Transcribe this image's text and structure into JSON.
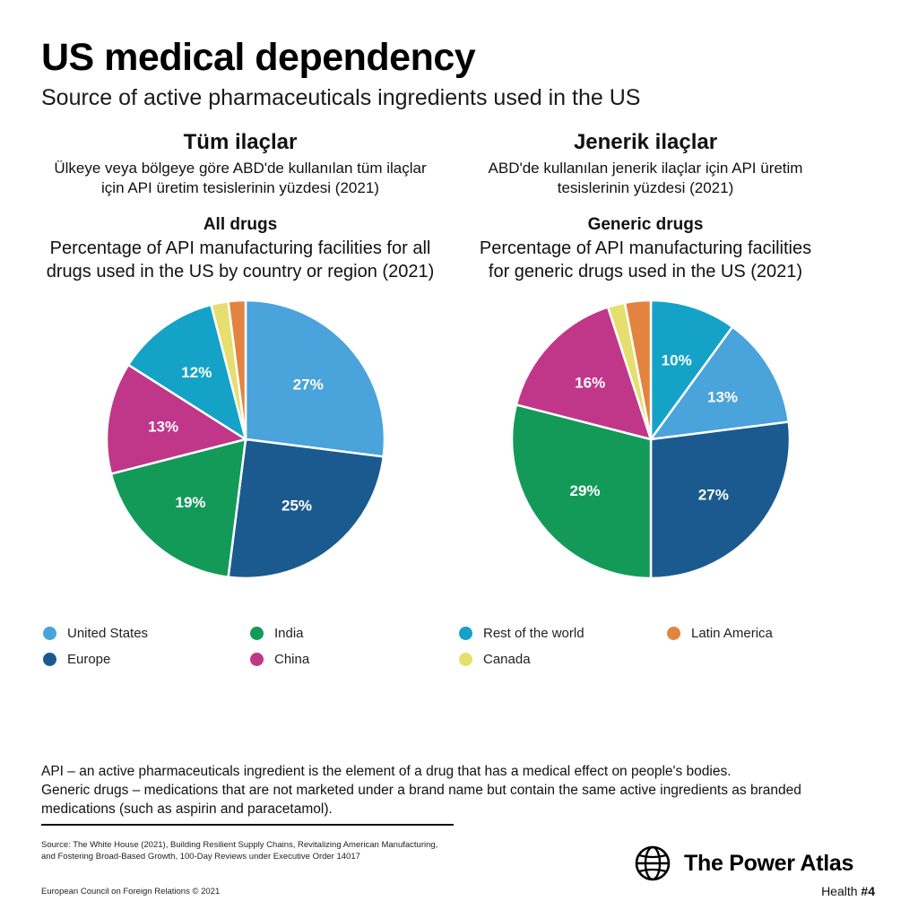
{
  "header": {
    "title": "US medical dependency",
    "subtitle": "Source of active pharmaceuticals ingredients used in the US"
  },
  "left_panel": {
    "tr_title": "Tüm ilaçlar",
    "tr_desc_line1": "Ülkeye veya bölgeye göre ABD'de kullanılan tüm ilaçlar",
    "tr_desc_line2": "için API üretim tesislerinin yüzdesi (2021)",
    "en_title": "All drugs",
    "en_desc_line1": "Percentage of API manufacturing facilities for all",
    "en_desc_line2": "drugs used in the US by country or region (2021)"
  },
  "right_panel": {
    "tr_title": "Jenerik ilaçlar",
    "tr_desc_line1": "ABD'de kullanılan jenerik ilaçlar için API üretim",
    "tr_desc_line2": "tesislerinin yüzdesi (2021)",
    "en_title": "Generic drugs",
    "en_desc_line1": "Percentage of API manufacturing facilities",
    "en_desc_line2": "for generic drugs used in the US (2021)"
  },
  "colors": {
    "United States": "#4aa3da",
    "Europe": "#1b5a8e",
    "India": "#139a58",
    "China": "#c0378a",
    "Rest of the world": "#14a3c7",
    "Canada": "#e6df6e",
    "Latin America": "#e2843f"
  },
  "chart_data": [
    {
      "type": "pie",
      "title": "All drugs",
      "categories": [
        "United States",
        "Europe",
        "India",
        "China",
        "Rest of the world",
        "Canada",
        "Latin America"
      ],
      "values": [
        27,
        25,
        19,
        13,
        12,
        2,
        2
      ],
      "labels": [
        "27%",
        "25%",
        "19%",
        "13%",
        "12%",
        "",
        ""
      ]
    },
    {
      "type": "pie",
      "title": "Generic drugs",
      "categories": [
        "Rest of the world",
        "United States",
        "Europe",
        "India",
        "China",
        "Canada",
        "Latin America"
      ],
      "values": [
        10,
        13,
        27,
        29,
        16,
        2,
        3
      ],
      "labels": [
        "10%",
        "13%",
        "27%",
        "29%",
        "16%",
        "",
        ""
      ]
    }
  ],
  "legend": {
    "items": [
      {
        "label": "United States",
        "icon": "blue-dot"
      },
      {
        "label": "Europe",
        "icon": "dark-blue-dot"
      },
      {
        "label": "India",
        "icon": "green-dot"
      },
      {
        "label": "China",
        "icon": "magenta-dot"
      },
      {
        "label": "Rest of the world",
        "icon": "teal-dot"
      },
      {
        "label": "Canada",
        "icon": "yellow-dot"
      },
      {
        "label": "Latin America",
        "icon": "orange-dot"
      }
    ]
  },
  "footer": {
    "footnote_line1": "API – an active pharmaceuticals ingredient is the element of a drug that has a medical effect on people's bodies.",
    "footnote_line2": "Generic drugs – medications that are not marketed under a brand name but contain the same active ingredients as branded",
    "footnote_line3": "medications (such as aspirin and paracetamol).",
    "source_line1": "Source: The White House (2021), Building Resilient Supply Chains, Revitalizing American Manufacturing,",
    "source_line2": "and Fostering Broad-Based Growth, 100-Day Reviews under Executive Order 14017",
    "copyright": "European Council on Foreign Relations © 2021",
    "brand_name": "The Power Atlas",
    "series_prefix": "Health ",
    "series_number": "#4",
    "brand_icon": "globe-icon"
  }
}
